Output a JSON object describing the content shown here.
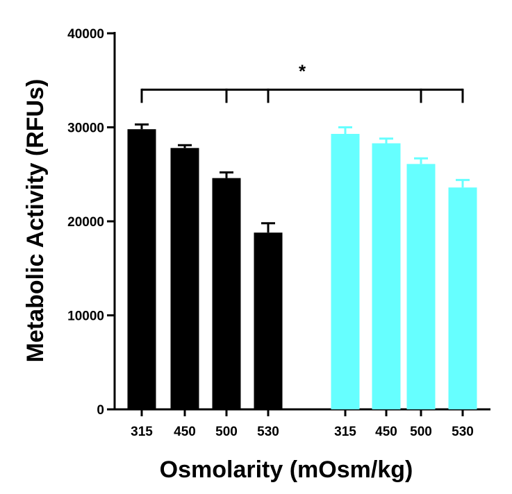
{
  "chart_data": {
    "type": "bar",
    "xlabel": "Osmolarity (mOsm/kg)",
    "ylabel": "Metabolic Activity (RFUs)",
    "ylim": [
      0,
      40000
    ],
    "yticks": [
      "0",
      "10000",
      "20000",
      "30000",
      "40000"
    ],
    "grid": false,
    "categories": [
      "315",
      "450",
      "500",
      "530",
      "315",
      "450",
      "500",
      "530"
    ],
    "groups": [
      {
        "color": "#000000",
        "categories": [
          "315",
          "450",
          "500",
          "530"
        ],
        "values": [
          29800,
          27800,
          24600,
          18800
        ],
        "errors": [
          500,
          300,
          600,
          1000
        ]
      },
      {
        "color": "#66ffff",
        "categories": [
          "315",
          "450",
          "500",
          "530"
        ],
        "values": [
          29300,
          28300,
          26100,
          23600
        ],
        "errors": [
          700,
          500,
          600,
          800
        ]
      }
    ],
    "annotations": [
      {
        "text": "*",
        "y": 34000,
        "bracket_from_bar": 0,
        "drops_at_bars": [
          2,
          3,
          6,
          7
        ]
      }
    ]
  }
}
